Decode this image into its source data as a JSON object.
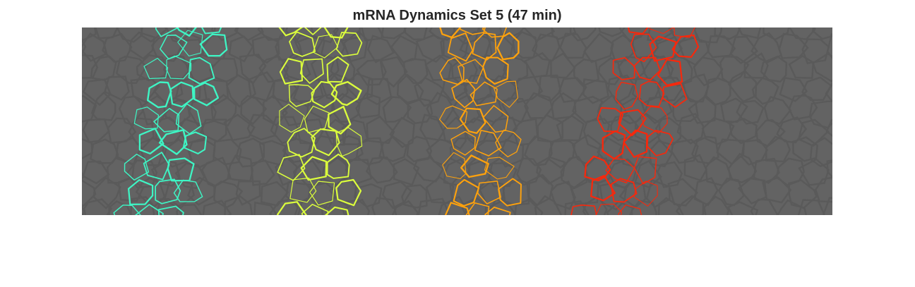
{
  "figure": {
    "title": "mRNA Dynamics Set 5 (47 min)"
  },
  "image": {
    "background_color": "#636363",
    "membrane_color": "#5a5a5a",
    "bands": [
      {
        "color": "#3ef5c4"
      },
      {
        "color": "#dcff3c"
      },
      {
        "color": "#ffa20c"
      },
      {
        "color": "#f7280c"
      }
    ]
  }
}
